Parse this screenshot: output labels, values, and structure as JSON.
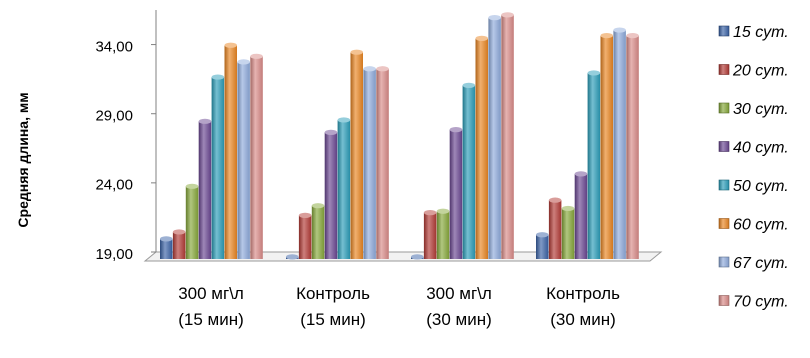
{
  "chart_data": {
    "type": "bar",
    "ylabel": "Средняя длина, мм",
    "ylim": [
      19,
      36.5
    ],
    "yticks": [
      "19,00",
      "24,00",
      "29,00",
      "34,00"
    ],
    "ytick_values": [
      19,
      24,
      29,
      34
    ],
    "grid": false,
    "legend_position": "right",
    "categories": [
      [
        "300 мг\\л",
        "(15 мин)"
      ],
      [
        "Контроль",
        "(15 мин)"
      ],
      [
        "300 мг\\л",
        "(30 мин)"
      ],
      [
        "Контроль",
        "(30 мин)"
      ]
    ],
    "series": [
      {
        "name": "15 сут.",
        "color": "#3a62a6",
        "values": [
          20.6,
          19.3,
          19.3,
          20.9
        ]
      },
      {
        "name": "20 сут.",
        "color": "#b23a35",
        "values": [
          21.1,
          22.3,
          22.5,
          23.4
        ]
      },
      {
        "name": "30 сут.",
        "color": "#86a83a",
        "values": [
          24.4,
          23.0,
          22.6,
          22.8
        ]
      },
      {
        "name": "40 сут.",
        "color": "#6a4691",
        "values": [
          29.1,
          28.3,
          28.5,
          25.3
        ]
      },
      {
        "name": "50 сут.",
        "color": "#2b9db8",
        "values": [
          32.3,
          29.2,
          31.7,
          32.6
        ]
      },
      {
        "name": "60 сут.",
        "color": "#e98522",
        "values": [
          34.6,
          34.1,
          35.1,
          35.3
        ]
      },
      {
        "name": "67 сут.",
        "color": "#8eaadb",
        "values": [
          33.4,
          32.9,
          36.6,
          35.7
        ]
      },
      {
        "name": "70 сут.",
        "color": "#d98a87",
        "values": [
          33.8,
          32.9,
          36.8,
          35.3
        ]
      }
    ]
  }
}
